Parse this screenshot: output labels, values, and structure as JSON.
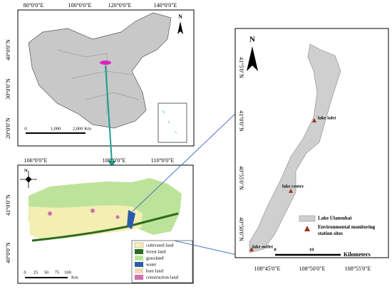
{
  "china_map": {
    "lon_labels": [
      "80°0'0\"E",
      "100°0'0\"E",
      "120°0'0\"E",
      "140°0'0\"E"
    ],
    "lat_labels": [
      "40°0'0\"N",
      "30°0'0\"N",
      "20°0'0\"N"
    ],
    "north": "N",
    "scale_labels": [
      "0",
      "1,000",
      "2,000 Km"
    ]
  },
  "study_area_map": {
    "lon_labels": [
      "106°0'0\"E",
      "108°0'0\"E",
      "110°0'0\"E"
    ],
    "lat_labels": [
      "41°0'0\"N",
      "40°0'0\"N"
    ],
    "north": "N",
    "scale_labels": [
      "0",
      "25",
      "50",
      "75",
      "100"
    ],
    "scale_unit": "Km",
    "legend": [
      "cultivated land",
      "forest land",
      "grassland",
      "water",
      "bare land",
      "construction land"
    ]
  },
  "lake_map": {
    "lat_labels": [
      "41°5'0\"N",
      "41°0'0\"N",
      "40°55'0\"N",
      "40°50'0\"N"
    ],
    "lon_labels": [
      "108°45'0\"E",
      "108°50'0\"E",
      "108°55'0\"E"
    ],
    "north": "N",
    "sites": [
      "lake inlet",
      "lake center",
      "lake outlet"
    ],
    "legend": [
      "Lake Ulansuhai",
      "Environmental monitoring station sites"
    ],
    "scale_labels": [
      "0",
      "10"
    ],
    "scale_unit": "Kilometers"
  }
}
